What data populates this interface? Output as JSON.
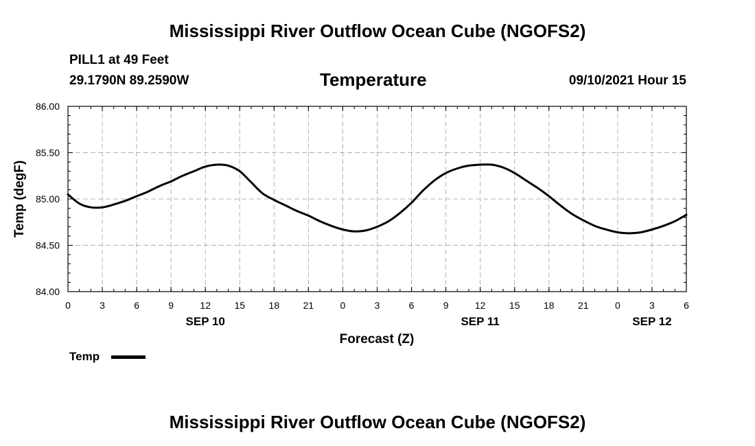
{
  "header": {
    "title": "Mississippi River Outflow Ocean Cube (NGOFS2)",
    "station": "PILL1 at 49 Feet",
    "coordinates": "29.1790N  89.2590W",
    "parameter": "Temperature",
    "datetime": "09/10/2021 Hour 15"
  },
  "footer": {
    "title": "Mississippi River Outflow Ocean Cube (NGOFS2)"
  },
  "legend": {
    "label": "Temp"
  },
  "chart_data": {
    "type": "line",
    "title": "Temperature",
    "xlabel": "Forecast (Z)",
    "ylabel": "Temp (degF)",
    "xlim": [
      0,
      54
    ],
    "ylim": [
      84.0,
      86.0
    ],
    "y_ticks": [
      "84.00",
      "84.50",
      "85.00",
      "85.50",
      "86.00"
    ],
    "x_tick_values": [
      0,
      3,
      6,
      9,
      12,
      15,
      18,
      21,
      24,
      27,
      30,
      33,
      36,
      39,
      42,
      45,
      48,
      51,
      54
    ],
    "x_tick_labels": [
      "0",
      "3",
      "6",
      "9",
      "12",
      "15",
      "18",
      "21",
      "0",
      "3",
      "6",
      "9",
      "12",
      "15",
      "18",
      "21",
      "0",
      "3",
      "6"
    ],
    "date_labels": [
      {
        "hour": 12,
        "label": "SEP 10"
      },
      {
        "hour": 36,
        "label": "SEP 11"
      },
      {
        "hour": 51,
        "label": "SEP 12"
      }
    ],
    "grid": true,
    "line_color": "#000000",
    "series": [
      {
        "name": "Temp",
        "x": [
          0,
          1,
          2,
          3,
          4,
          5,
          6,
          7,
          8,
          9,
          10,
          11,
          12,
          13,
          14,
          15,
          16,
          17,
          18,
          19,
          20,
          21,
          22,
          23,
          24,
          25,
          26,
          27,
          28,
          29,
          30,
          31,
          32,
          33,
          34,
          35,
          36,
          37,
          38,
          39,
          40,
          41,
          42,
          43,
          44,
          45,
          46,
          47,
          48,
          49,
          50,
          51,
          52,
          53,
          54
        ],
        "values": [
          85.05,
          84.95,
          84.91,
          84.91,
          84.94,
          84.98,
          85.03,
          85.08,
          85.14,
          85.19,
          85.25,
          85.3,
          85.35,
          85.37,
          85.36,
          85.3,
          85.18,
          85.06,
          84.99,
          84.93,
          84.87,
          84.82,
          84.76,
          84.71,
          84.67,
          84.65,
          84.66,
          84.7,
          84.76,
          84.85,
          84.96,
          85.09,
          85.2,
          85.28,
          85.33,
          85.36,
          85.37,
          85.37,
          85.34,
          85.28,
          85.2,
          85.12,
          85.03,
          84.93,
          84.84,
          84.77,
          84.71,
          84.67,
          84.64,
          84.63,
          84.64,
          84.67,
          84.71,
          84.76,
          84.83
        ]
      }
    ]
  }
}
